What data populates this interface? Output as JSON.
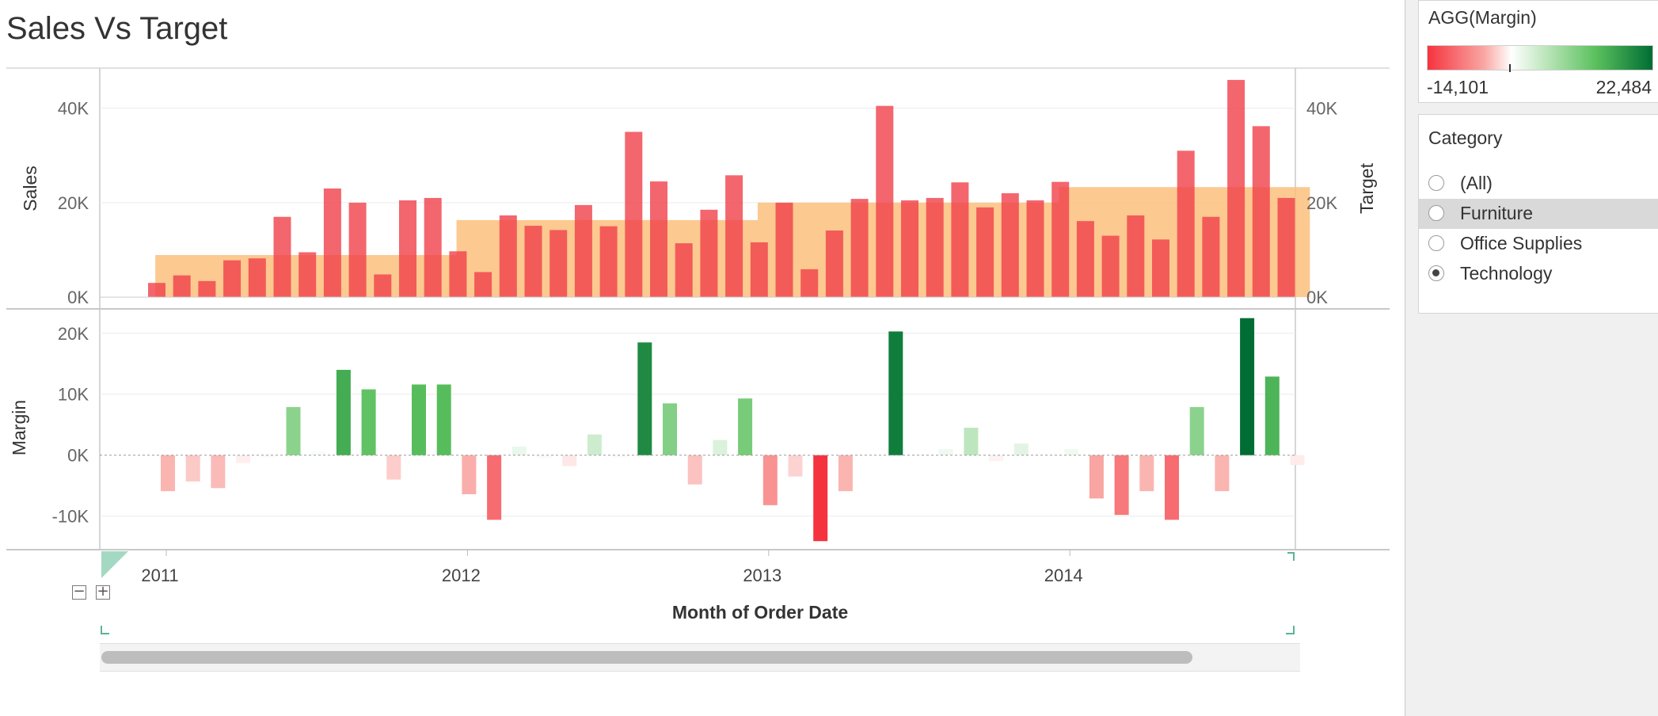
{
  "title": "Sales Vs Target",
  "chart_data": {
    "type": "bar",
    "x_label": "Month of Order Date",
    "x_ticks": [
      "2011",
      "2012",
      "2013",
      "2014"
    ],
    "start_month": "2011-01",
    "months": 46,
    "panes": [
      {
        "name": "Sales",
        "ylabel": "Sales",
        "ylabel_right": "Target",
        "ylim": [
          -2500,
          48500
        ],
        "yticks": [
          {
            "value": 0,
            "label": "0K"
          },
          {
            "value": 20000,
            "label": "20K"
          },
          {
            "value": 40000,
            "label": "40K"
          }
        ],
        "series": [
          {
            "name": "Sales",
            "color": "#f0404a",
            "values": [
              3000,
              4600,
              3400,
              7800,
              8200,
              17000,
              9500,
              23000,
              20000,
              4800,
              20500,
              21000,
              9700,
              5300,
              17300,
              15100,
              14200,
              19500,
              15000,
              35000,
              24500,
              11400,
              18500,
              25800,
              11600,
              20000,
              5900,
              14100,
              20800,
              40500,
              20500,
              21000,
              24300,
              19000,
              22000,
              20500,
              24400,
              16100,
              13000,
              17300,
              12200,
              31000,
              17000,
              46000,
              36200,
              21000
            ]
          },
          {
            "name": "Target",
            "color": "#fcbf7d",
            "values": [
              8900,
              8900,
              8900,
              8900,
              8900,
              8900,
              8900,
              8900,
              8900,
              8900,
              8900,
              8900,
              16300,
              16300,
              16300,
              16300,
              16300,
              16300,
              16300,
              16300,
              16300,
              16300,
              16300,
              16300,
              20000,
              20000,
              20000,
              20000,
              20000,
              20000,
              20000,
              20000,
              20000,
              20000,
              20000,
              20000,
              23300,
              23300,
              23300,
              23300,
              23300,
              23300,
              23300,
              23300,
              23300,
              23300
            ]
          }
        ]
      },
      {
        "name": "Margin",
        "ylabel": "Margin",
        "ylim": [
          -15500,
          24000
        ],
        "yticks": [
          {
            "value": -10000,
            "label": "-10K"
          },
          {
            "value": 0,
            "label": "0K"
          },
          {
            "value": 10000,
            "label": "10K"
          },
          {
            "value": 20000,
            "label": "20K"
          }
        ],
        "series": [
          {
            "name": "Margin",
            "values": [
              -5900,
              -4300,
              -5400,
              -1300,
              -400,
              7900,
              600,
              14000,
              10800,
              -4000,
              11600,
              11600,
              -6400,
              -10600,
              1400,
              -500,
              -1800,
              3400,
              -400,
              18500,
              8500,
              -4800,
              2500,
              9300,
              -8200,
              -3500,
              -14101,
              -5900,
              200,
              20300,
              200,
              1000,
              4500,
              -1000,
              1900,
              200,
              1000,
              -7100,
              -9800,
              -5900,
              -10600,
              7900,
              -5900,
              22484,
              12900,
              -1600
            ]
          }
        ]
      }
    ],
    "color_scale": {
      "title": "AGG(Margin)",
      "min": -14101,
      "max": 22484,
      "min_label": "-14,101",
      "max_label": "22,484",
      "neg_colors": [
        "#ffffff",
        "#f9a6a2",
        "#f5333f"
      ],
      "pos_colors": [
        "#ffffff",
        "#5ac05d",
        "#006d34"
      ]
    }
  },
  "category_filter": {
    "title": "Category",
    "options": [
      {
        "label": "(All)",
        "selected": false,
        "hover": false
      },
      {
        "label": "Furniture",
        "selected": false,
        "hover": true
      },
      {
        "label": "Office Supplies",
        "selected": false,
        "hover": false
      },
      {
        "label": "Technology",
        "selected": true,
        "hover": false
      }
    ]
  }
}
